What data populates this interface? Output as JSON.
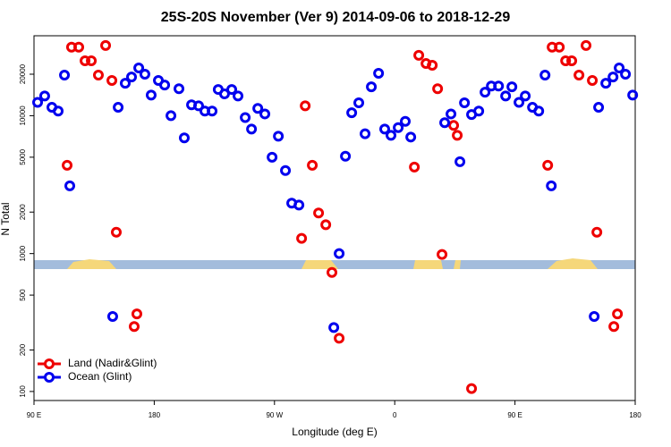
{
  "chart_data": {
    "type": "scatter",
    "title": "25S-20S November (Ver 9)   2014-09-06 to 2018-12-29",
    "x_label": "Longitude (deg E)",
    "y_label": "N Total",
    "xlim": [
      90,
      540
    ],
    "ylim": [
      86,
      38000
    ],
    "y_log": true,
    "legend": "bottom-left",
    "xticks": [
      {
        "value": 90,
        "label": "90 E"
      },
      180,
      {
        "value": 270,
        "label": "90 W"
      },
      {
        "value": 360,
        "label": "0"
      },
      {
        "value": 450,
        "label": "90 E"
      },
      {
        "value": 540,
        "label": "180"
      }
    ],
    "yticks": [
      100,
      200,
      500,
      1000,
      2000,
      5000,
      10000,
      20000
    ],
    "series": [
      {
        "name": "Land (Nadir&Glint)",
        "color": "#ee0000",
        "x": [
          114.8,
          118.1,
          123.5,
          128.2,
          132.9,
          138.2,
          143.6,
          148.3,
          151.6,
          165.0,
          167.0,
          290.3,
          293.0,
          298.3,
          303.0,
          308.4,
          313.0,
          318.4,
          374.7,
          378.0,
          383.4,
          388.1,
          392.1,
          395.4,
          404.1,
          406.8,
          417.5,
          474.5,
          477.8,
          483.2,
          487.9,
          492.5,
          497.9,
          503.2,
          507.9,
          511.3,
          524.0,
          526.7
        ],
        "values": [
          4370,
          31400,
          31400,
          25000,
          25000,
          19700,
          32300,
          18000,
          1430,
          296,
          365,
          1290,
          11800,
          4370,
          1970,
          1620,
          730,
          243,
          4240,
          27400,
          23900,
          23200,
          15700,
          985,
          8500,
          7200,
          105,
          4370,
          31400,
          31400,
          25000,
          25000,
          19700,
          32300,
          18000,
          1430,
          296,
          365
        ]
      },
      {
        "name": "Ocean (Glint)",
        "color": "#0000ee",
        "x": [
          92.7,
          98.0,
          103.4,
          108.1,
          112.8,
          116.8,
          148.9,
          153.0,
          158.3,
          163.0,
          168.4,
          173.0,
          177.7,
          183.1,
          187.8,
          192.5,
          198.5,
          202.5,
          207.9,
          213.2,
          217.9,
          223.3,
          227.9,
          232.6,
          238.0,
          242.7,
          248.1,
          252.8,
          257.5,
          262.8,
          268.2,
          272.9,
          278.2,
          282.9,
          288.3,
          314.4,
          318.4,
          323.1,
          327.8,
          333.1,
          337.8,
          342.5,
          347.9,
          352.5,
          357.2,
          362.6,
          367.9,
          372.0,
          397.4,
          402.1,
          408.8,
          412.2,
          417.5,
          422.9,
          427.6,
          432.3,
          437.7,
          443.0,
          447.7,
          453.0,
          457.7,
          463.1,
          467.8,
          472.5,
          477.2,
          509.3,
          512.6,
          518.0,
          523.4,
          528.0,
          532.7,
          538.1
        ],
        "values": [
          12500,
          13900,
          11500,
          10800,
          19700,
          3100,
          350,
          11500,
          17200,
          19100,
          22200,
          20000,
          14100,
          18000,
          16700,
          10000,
          15700,
          6900,
          12000,
          11800,
          10800,
          10800,
          15500,
          14400,
          15500,
          13900,
          9700,
          8000,
          11300,
          10300,
          5000,
          7100,
          4000,
          2320,
          2250,
          291,
          1000,
          5080,
          10500,
          12400,
          7400,
          16200,
          20300,
          8000,
          7200,
          8200,
          9100,
          7000,
          8900,
          10300,
          4640,
          12400,
          10200,
          10800,
          14800,
          16400,
          16400,
          13900,
          16200,
          12500,
          13900,
          11500,
          10800,
          19700,
          3100,
          350,
          11500,
          17200,
          19100,
          22200,
          20000,
          14100
        ]
      }
    ]
  }
}
